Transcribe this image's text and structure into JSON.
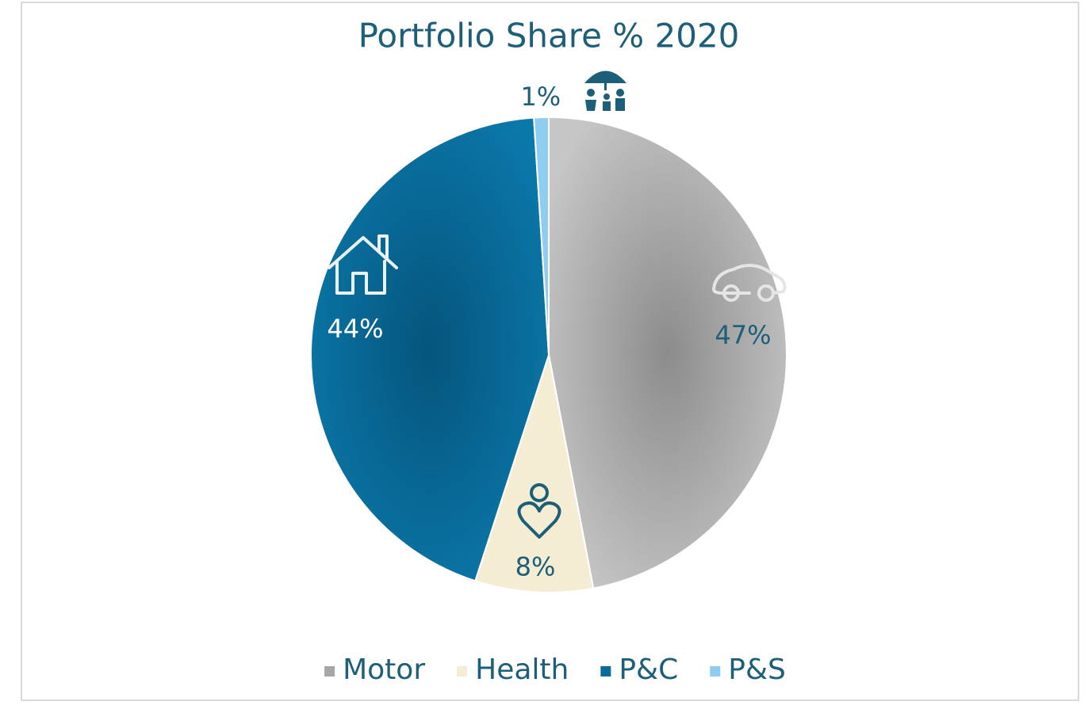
{
  "chart_data": {
    "type": "pie",
    "title": "Portfolio Share % 2020",
    "categories": [
      "Motor",
      "Health",
      "P&C",
      "P&S"
    ],
    "values": [
      47,
      8,
      44,
      1
    ],
    "value_labels": [
      "47%",
      "8%",
      "44%",
      "1%"
    ],
    "colors": [
      "#a6a6a6",
      "#f4edd3",
      "#0a6c9c",
      "#8fcdf0"
    ],
    "legend": "bottom"
  }
}
